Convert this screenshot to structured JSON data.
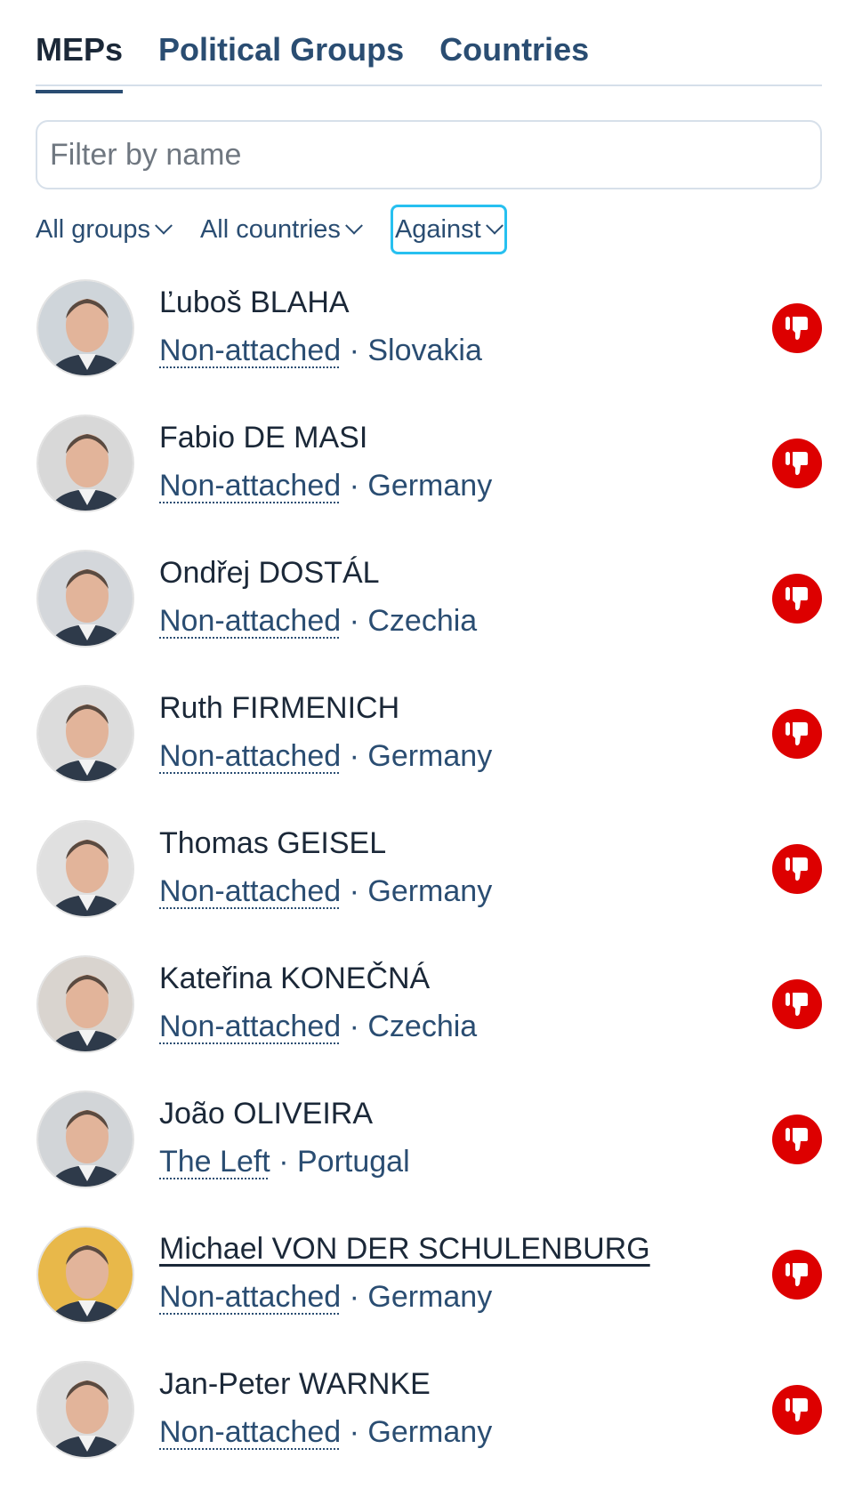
{
  "tabs": [
    {
      "label": "MEPs",
      "active": true
    },
    {
      "label": "Political Groups",
      "active": false
    },
    {
      "label": "Countries",
      "active": false
    }
  ],
  "search": {
    "placeholder": "Filter by name",
    "value": ""
  },
  "filters": {
    "group": "All groups",
    "country": "All countries",
    "vote": "Against"
  },
  "colors": {
    "against": "#dd0000",
    "accent": "#2a4d72",
    "focus": "#27c0f0"
  },
  "vote_icon": "thumbs-down-icon",
  "meps": [
    {
      "name": "Ľuboš BLAHA",
      "group": "Non-attached",
      "separator": "·",
      "country": "Slovakia",
      "vote": "against",
      "bg": "#cfd5da"
    },
    {
      "name": "Fabio DE MASI",
      "group": "Non-attached",
      "separator": "·",
      "country": "Germany",
      "vote": "against",
      "bg": "#d8d8d8"
    },
    {
      "name": "Ondřej DOSTÁL",
      "group": "Non-attached",
      "separator": "·",
      "country": "Czechia",
      "vote": "against",
      "bg": "#d4d7db"
    },
    {
      "name": "Ruth FIRMENICH",
      "group": "Non-attached",
      "separator": "·",
      "country": "Germany",
      "vote": "against",
      "bg": "#dcdcdc"
    },
    {
      "name": "Thomas GEISEL",
      "group": "Non-attached",
      "separator": "·",
      "country": "Germany",
      "vote": "against",
      "bg": "#e0e0e0"
    },
    {
      "name": "Kateřina KONEČNÁ",
      "group": "Non-attached",
      "separator": "·",
      "country": "Czechia",
      "vote": "against",
      "bg": "#d9d4cf"
    },
    {
      "name": "João OLIVEIRA",
      "group": "The Left",
      "separator": "·",
      "country": "Portugal",
      "vote": "against",
      "bg": "#d2d5d8"
    },
    {
      "name": "Michael VON DER SCHULENBURG",
      "group": "Non-attached",
      "separator": "·",
      "country": "Germany",
      "vote": "against",
      "bg": "#e8b84a"
    },
    {
      "name": "Jan-Peter WARNKE",
      "group": "Non-attached",
      "separator": "·",
      "country": "Germany",
      "vote": "against",
      "bg": "#dcdcdc"
    }
  ]
}
